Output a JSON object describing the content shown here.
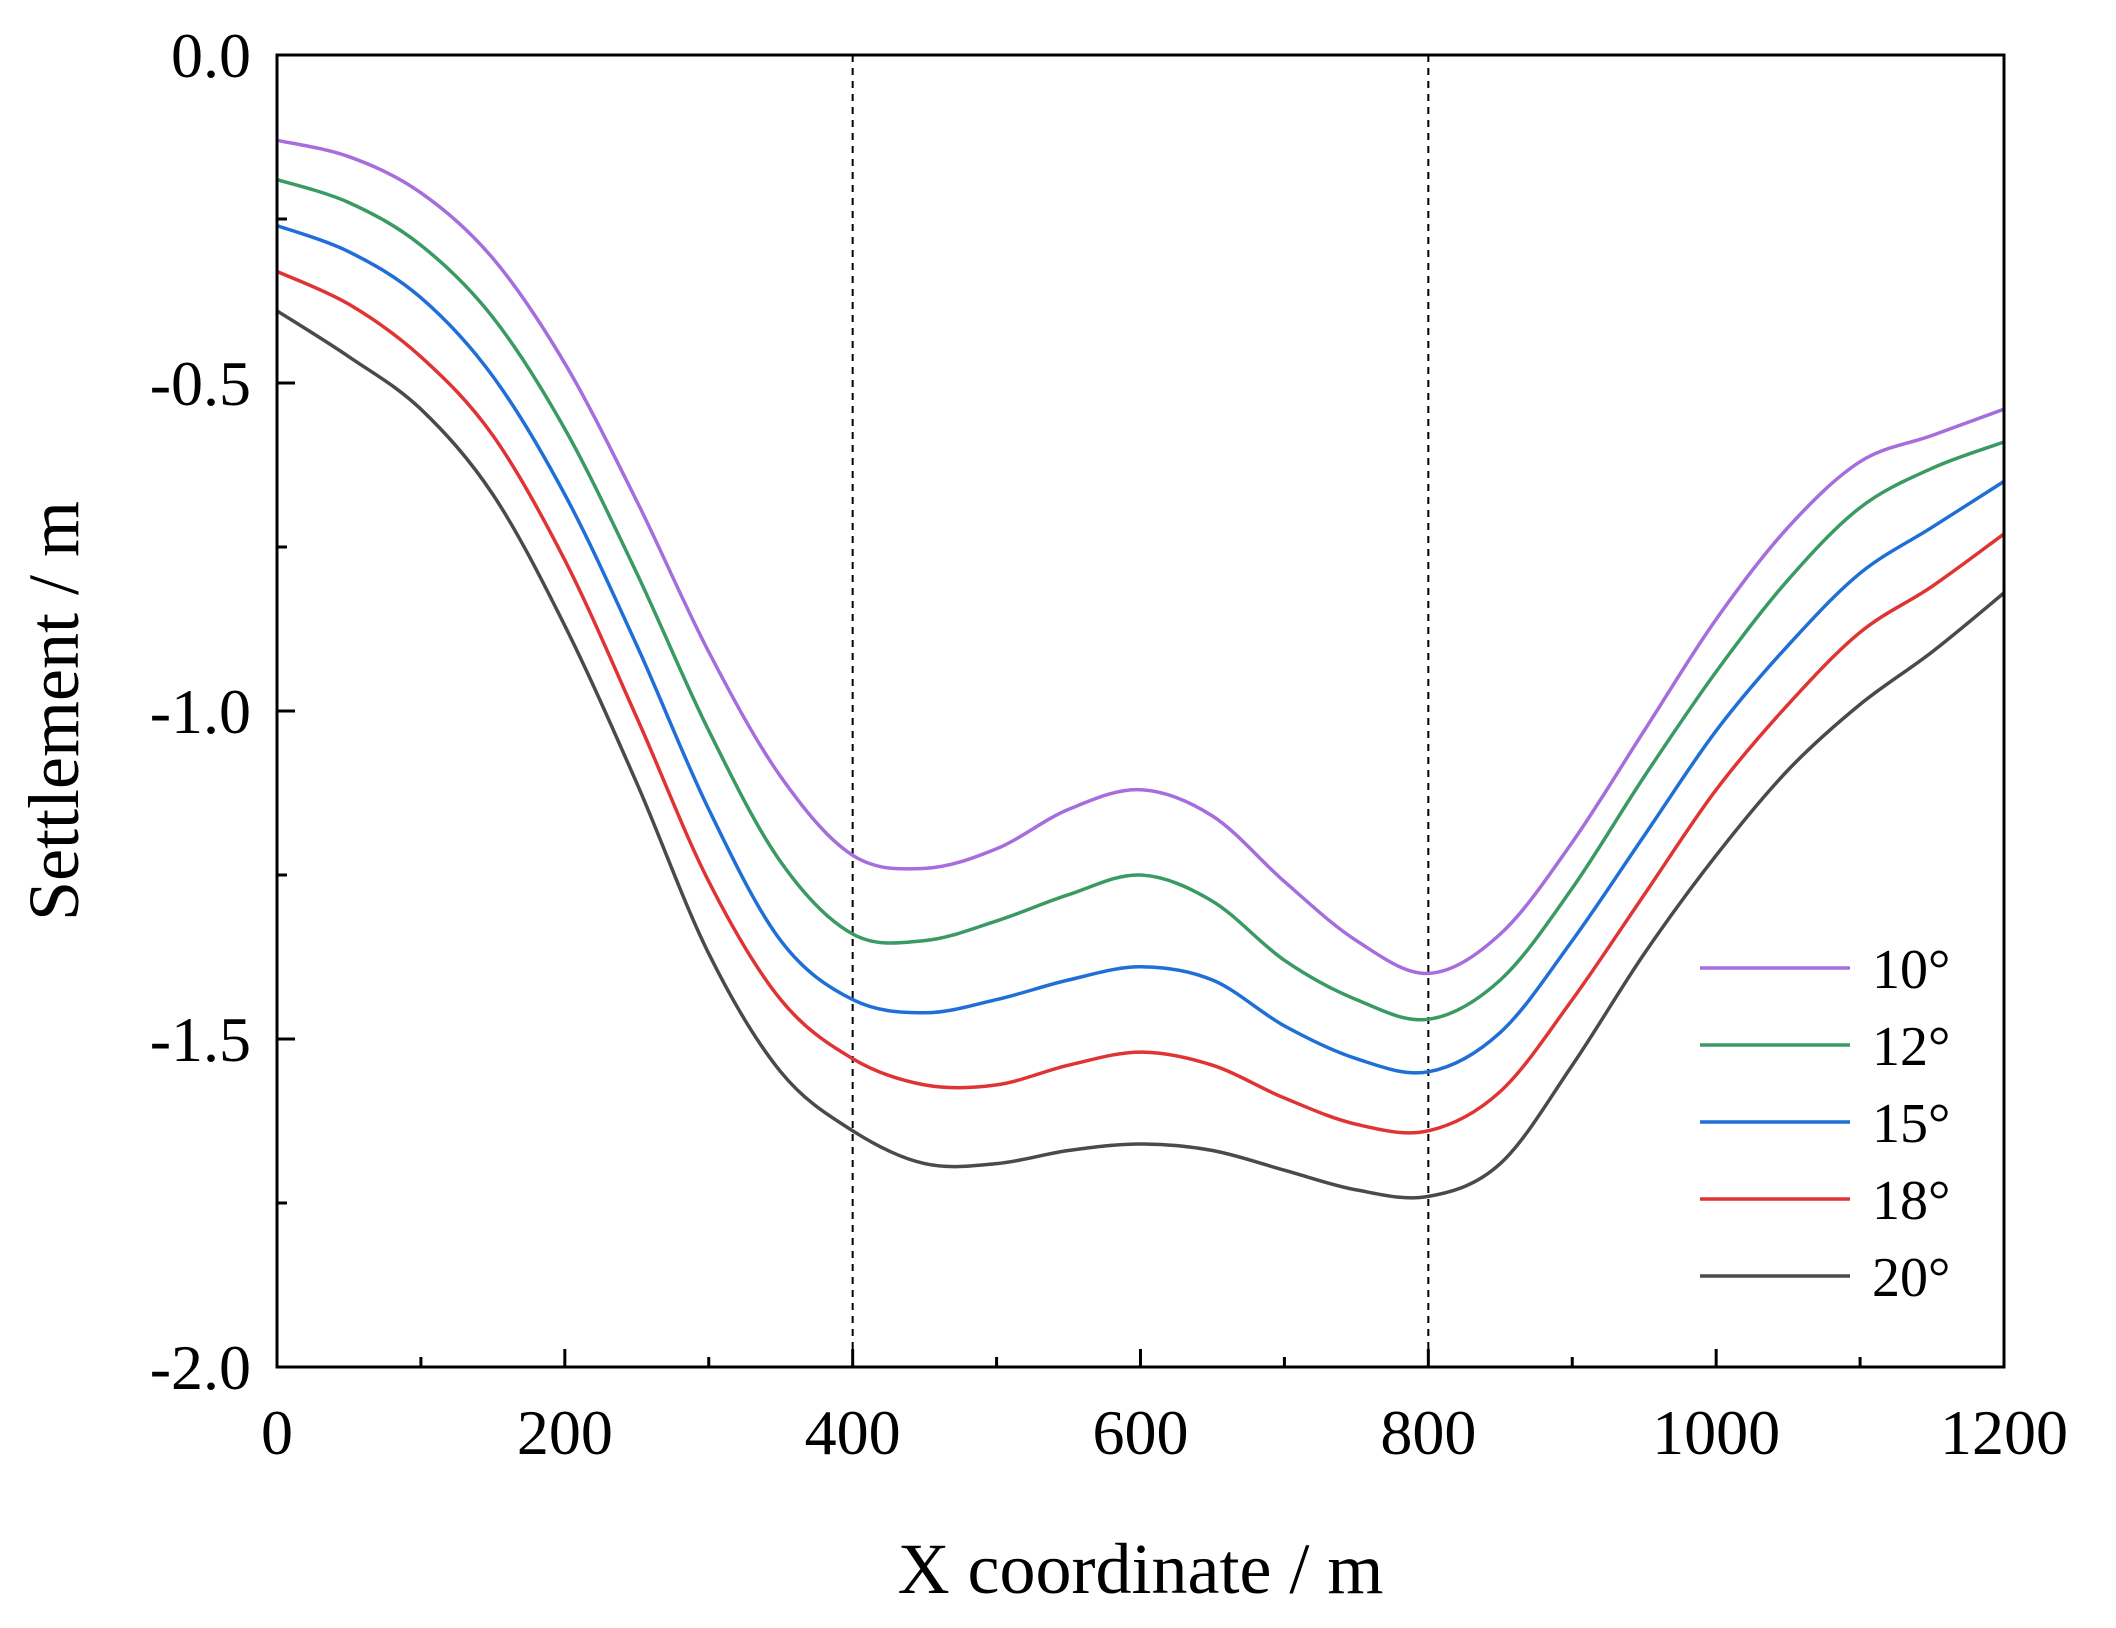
{
  "chart_data": {
    "type": "line",
    "title": "",
    "xlabel": "X coordinate / m",
    "ylabel": "Settlement / m",
    "xlim": [
      0,
      1200
    ],
    "ylim": [
      -2.0,
      0.0
    ],
    "xticks": [
      0,
      200,
      400,
      600,
      800,
      1000,
      1200
    ],
    "xtick_labels": [
      "0",
      "200",
      "400",
      "600",
      "800",
      "1000",
      "1200"
    ],
    "xminor": [
      100,
      300,
      500,
      700,
      900,
      1100
    ],
    "yticks": [
      0.0,
      -0.5,
      -1.0,
      -1.5,
      -2.0
    ],
    "ytick_labels": [
      "0.0",
      "-0.5",
      "-1.0",
      "-1.5",
      "-2.0"
    ],
    "yminor": [
      -0.25,
      -0.75,
      -1.25,
      -1.75
    ],
    "grid": false,
    "legend_position": "lower-right",
    "reference_lines_x": [
      400,
      800
    ],
    "x": [
      0,
      50,
      100,
      150,
      200,
      250,
      300,
      350,
      400,
      450,
      500,
      550,
      600,
      650,
      700,
      750,
      800,
      850,
      900,
      950,
      1000,
      1050,
      1100,
      1150,
      1200
    ],
    "series": [
      {
        "name": "10°",
        "color": "#a66ddc",
        "values": [
          -0.13,
          -0.155,
          -0.21,
          -0.31,
          -0.47,
          -0.68,
          -0.91,
          -1.1,
          -1.22,
          -1.24,
          -1.21,
          -1.15,
          -1.12,
          -1.16,
          -1.26,
          -1.35,
          -1.4,
          -1.34,
          -1.2,
          -1.03,
          -0.86,
          -0.72,
          -0.62,
          -0.58,
          -0.54
        ]
      },
      {
        "name": "12°",
        "color": "#3a9a63",
        "values": [
          -0.19,
          -0.225,
          -0.29,
          -0.4,
          -0.57,
          -0.79,
          -1.03,
          -1.23,
          -1.34,
          -1.35,
          -1.32,
          -1.28,
          -1.25,
          -1.29,
          -1.38,
          -1.44,
          -1.47,
          -1.41,
          -1.27,
          -1.1,
          -0.94,
          -0.8,
          -0.69,
          -0.63,
          -0.59
        ]
      },
      {
        "name": "15°",
        "color": "#1f6fd6",
        "values": [
          -0.26,
          -0.3,
          -0.37,
          -0.49,
          -0.67,
          -0.9,
          -1.15,
          -1.35,
          -1.44,
          -1.46,
          -1.44,
          -1.41,
          -1.39,
          -1.41,
          -1.48,
          -1.53,
          -1.55,
          -1.49,
          -1.35,
          -1.19,
          -1.03,
          -0.9,
          -0.79,
          -0.72,
          -0.65
        ]
      },
      {
        "name": "18°",
        "color": "#e03434",
        "values": [
          -0.33,
          -0.38,
          -0.46,
          -0.58,
          -0.77,
          -1.01,
          -1.26,
          -1.44,
          -1.53,
          -1.57,
          -1.57,
          -1.54,
          -1.52,
          -1.54,
          -1.59,
          -1.63,
          -1.64,
          -1.58,
          -1.44,
          -1.28,
          -1.12,
          -0.99,
          -0.88,
          -0.81,
          -0.73
        ]
      },
      {
        "name": "20°",
        "color": "#4a4a4a",
        "values": [
          -0.39,
          -0.46,
          -0.54,
          -0.67,
          -0.87,
          -1.11,
          -1.37,
          -1.55,
          -1.64,
          -1.69,
          -1.69,
          -1.67,
          -1.66,
          -1.67,
          -1.7,
          -1.73,
          -1.74,
          -1.69,
          -1.54,
          -1.37,
          -1.22,
          -1.09,
          -0.99,
          -0.91,
          -0.82
        ]
      }
    ]
  }
}
